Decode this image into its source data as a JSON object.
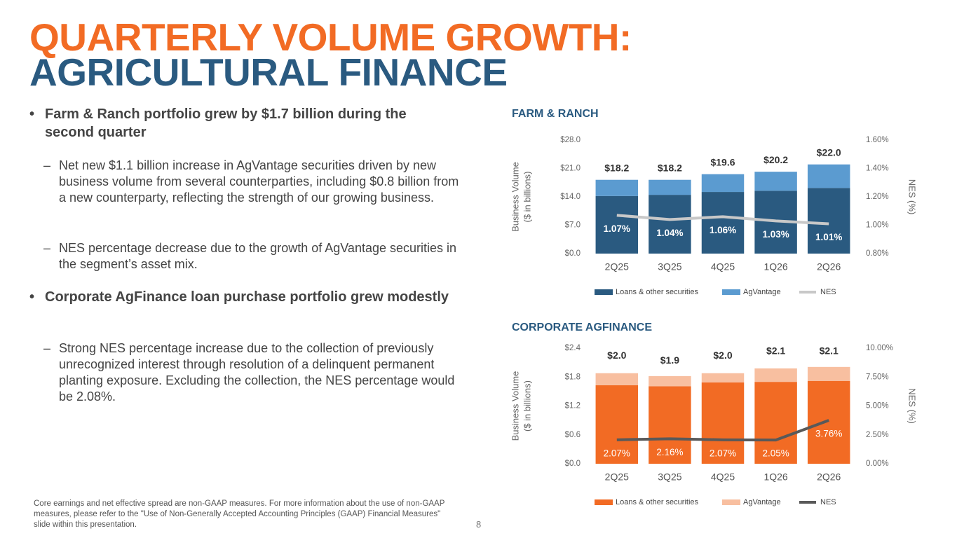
{
  "title_lines": [
    "QUARTERLY VOLUME GROWTH:",
    "AGRICULTURAL FINANCE"
  ],
  "bullets": [
    {
      "text": "Farm & Ranch portfolio grew by $1.7 billion during the second quarter",
      "subs": [
        "Net new $1.1 billion increase in AgVantage securities driven by new business volume from several counterparties, including $0.8 billion from a new counterparty, reflecting the strength of our growing business.",
        "NES percentage decrease due to the growth of AgVantage securities in the segment’s asset mix."
      ]
    },
    {
      "text": "Corporate AgFinance loan purchase portfolio grew modestly",
      "subs": [
        "Strong NES percentage increase due to the collection of previously unrecognized interest through resolution of a delinquent permanent planting exposure. Excluding the collection, the NES percentage would be 2.08%."
      ]
    }
  ],
  "footnote": "Core earnings and net effective spread are non-GAAP measures. For more information about the use of non-GAAP measures, please refer to the \"Use of Non-Generally Accepted Accounting Principles (GAAP) Financial Measures\" slide within this presentation.",
  "page_number": "8",
  "chart_data": [
    {
      "type": "bar",
      "title": "FARM & RANCH",
      "y_label": [
        "Business Volume",
        "($ in billions)"
      ],
      "y2_label": "NES (%)",
      "categories": [
        "2Q25",
        "3Q25",
        "4Q25",
        "1Q26",
        "2Q26"
      ],
      "series": [
        {
          "name": "Loans & other securities",
          "color": "#2a5a80",
          "values": [
            14.2,
            14.5,
            15.2,
            15.5,
            16.2
          ]
        },
        {
          "name": "AgVantage",
          "color": "#5b9bd0",
          "values": [
            4.0,
            3.7,
            4.4,
            4.7,
            5.8
          ]
        },
        {
          "name": "NES",
          "color": "#c8c8c8",
          "type": "line",
          "axis": "y2",
          "values": [
            1.07,
            1.04,
            1.06,
            1.03,
            1.01
          ],
          "value_labels": [
            "1.07%",
            "1.04%",
            "1.06%",
            "1.03%",
            "1.01%"
          ]
        }
      ],
      "totals": {
        "values": [
          18.2,
          18.2,
          19.6,
          20.2,
          22.0
        ],
        "value_labels": [
          "$18.2",
          "$18.2",
          "$19.6",
          "$20.2",
          "$22.0"
        ]
      },
      "ylim": [
        0,
        28
      ],
      "yticks": [
        {
          "value": 0,
          "label": "$0.0"
        },
        {
          "value": 7,
          "label": "$7.0"
        },
        {
          "value": 14,
          "label": "$14.0"
        },
        {
          "value": 21,
          "label": "$21.0"
        },
        {
          "value": 28,
          "label": "$28.0"
        }
      ],
      "y2lim": [
        0.8,
        1.6
      ],
      "y2ticks": [
        {
          "value": 0.8,
          "label": "0.80%"
        },
        {
          "value": 1.0,
          "label": "1.00%"
        },
        {
          "value": 1.2,
          "label": "1.20%"
        },
        {
          "value": 1.4,
          "label": "1.40%"
        },
        {
          "value": 1.6,
          "label": "1.60%"
        }
      ]
    },
    {
      "type": "bar",
      "title": "CORPORATE AGFINANCE",
      "y_label": [
        "Business Volume",
        "($ in billions)"
      ],
      "y2_label": "NES (%)",
      "categories": [
        "2Q25",
        "3Q25",
        "4Q25",
        "1Q26",
        "2Q26"
      ],
      "series": [
        {
          "name": "Loans & other securities",
          "color": "#f26b24",
          "values": [
            1.63,
            1.61,
            1.69,
            1.7,
            1.72
          ]
        },
        {
          "name": "AgVantage",
          "color": "#f8bfa0",
          "values": [
            0.25,
            0.21,
            0.19,
            0.28,
            0.29
          ]
        },
        {
          "name": "NES",
          "color": "#595959",
          "type": "line",
          "axis": "y2",
          "values": [
            2.07,
            2.16,
            2.07,
            2.05,
            3.76
          ],
          "value_labels": [
            "2.07%",
            "2.16%",
            "2.07%",
            "2.05%",
            "3.76%"
          ]
        }
      ],
      "totals": {
        "values": [
          2.0,
          1.9,
          2.0,
          2.1,
          2.1
        ],
        "value_labels": [
          "$2.0",
          "$1.9",
          "$2.0",
          "$2.1",
          "$2.1"
        ]
      },
      "ylim": [
        0,
        2.4
      ],
      "yticks": [
        {
          "value": 0,
          "label": "$0.0"
        },
        {
          "value": 0.6,
          "label": "$0.6"
        },
        {
          "value": 1.2,
          "label": "$1.2"
        },
        {
          "value": 1.8,
          "label": "$1.8"
        },
        {
          "value": 2.4,
          "label": "$2.4"
        }
      ],
      "y2lim": [
        0,
        10
      ],
      "y2ticks": [
        {
          "value": 0,
          "label": "0.00%"
        },
        {
          "value": 2.5,
          "label": "2.50%"
        },
        {
          "value": 5,
          "label": "5.00%"
        },
        {
          "value": 7.5,
          "label": "7.50%"
        },
        {
          "value": 10,
          "label": "10.00%"
        }
      ]
    }
  ]
}
